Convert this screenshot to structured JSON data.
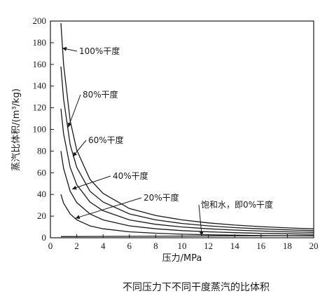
{
  "chart_data": {
    "type": "line",
    "xlabel": "压力/MPa",
    "ylabel": "蒸汽比体积/(m³/kg)",
    "xlim": [
      0,
      20
    ],
    "ylim": [
      0,
      200
    ],
    "xticks": [
      0,
      2,
      4,
      6,
      8,
      10,
      12,
      14,
      16,
      18,
      20
    ],
    "yticks": [
      0,
      20,
      40,
      60,
      80,
      100,
      120,
      140,
      160,
      180,
      200
    ],
    "grid": false,
    "caption": "不同压力下不同干度蒸汽的比体积",
    "series": [
      {
        "name": "100%干度",
        "x": [
          0.8,
          1,
          1.5,
          2,
          3,
          4,
          6,
          8,
          10,
          12,
          14,
          16,
          18,
          20
        ],
        "y": [
          198,
          160,
          108,
          81,
          54,
          41,
          27,
          20.5,
          16.5,
          13.7,
          11.7,
          10.3,
          9.1,
          8.2
        ]
      },
      {
        "name": "80%干度",
        "x": [
          0.8,
          1,
          1.5,
          2,
          3,
          4,
          6,
          8,
          10,
          12,
          14,
          16,
          18,
          20
        ],
        "y": [
          158,
          128,
          86,
          65,
          43,
          33,
          22,
          16.5,
          13.2,
          11,
          9.4,
          8.2,
          7.3,
          6.6
        ]
      },
      {
        "name": "60%干度",
        "x": [
          0.8,
          1,
          1.5,
          2,
          3,
          4,
          6,
          8,
          10,
          12,
          14,
          16,
          18,
          20
        ],
        "y": [
          119,
          96,
          65,
          49,
          33,
          25,
          16.5,
          12.4,
          10,
          8.3,
          7.1,
          6.2,
          5.5,
          5
        ]
      },
      {
        "name": "40%干度",
        "x": [
          0.8,
          1,
          1.5,
          2,
          3,
          4,
          6,
          8,
          10,
          12,
          14,
          16,
          18,
          20
        ],
        "y": [
          80,
          64,
          43,
          32.5,
          22,
          16.5,
          11,
          8.3,
          6.6,
          5.5,
          4.7,
          4.1,
          3.7,
          3.3
        ]
      },
      {
        "name": "20%干度",
        "x": [
          0.8,
          1,
          1.5,
          2,
          3,
          4,
          6,
          8,
          10,
          12,
          14,
          16,
          18,
          20
        ],
        "y": [
          40,
          32,
          22,
          16.5,
          11,
          8.3,
          5.5,
          4.2,
          3.3,
          2.8,
          2.4,
          2.1,
          1.9,
          1.7
        ]
      },
      {
        "name": "饱和水，即0%干度",
        "x": [
          0.8,
          20
        ],
        "y": [
          1.1,
          2.0
        ]
      }
    ],
    "annotations": [
      {
        "text": "100%干度",
        "series": 0
      },
      {
        "text": "80%干度",
        "series": 1
      },
      {
        "text": "60%干度",
        "series": 2
      },
      {
        "text": "40%干度",
        "series": 3
      },
      {
        "text": "20%干度",
        "series": 4
      },
      {
        "text": "饱和水，即0%干度",
        "series": 5
      }
    ]
  }
}
